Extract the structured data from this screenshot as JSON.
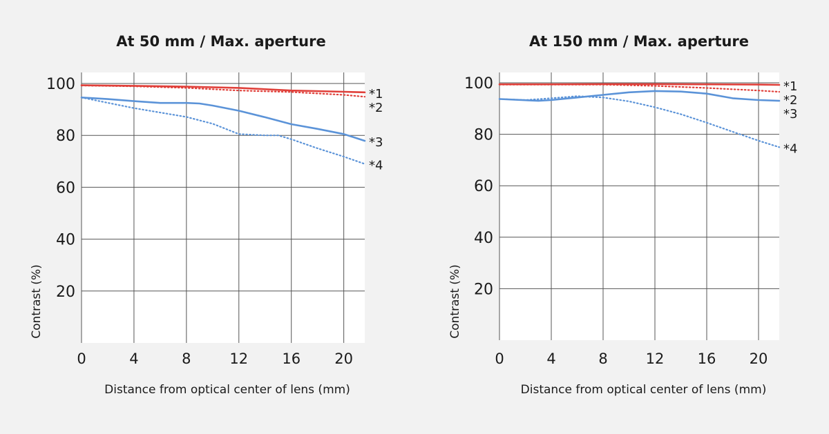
{
  "chart_data": [
    {
      "type": "line",
      "title": "At 50 mm / Max. aperture",
      "xlabel": "Distance from optical center of lens (mm)",
      "ylabel": "Contrast (%)",
      "xlim": [
        0,
        21.6
      ],
      "ylim": [
        0,
        100
      ],
      "xticks": [
        0,
        4,
        8,
        12,
        16,
        20
      ],
      "yticks": [
        20,
        40,
        60,
        80,
        100
      ],
      "grid": true,
      "series": [
        {
          "name": "*1",
          "color": "#e0403a",
          "style": "solid",
          "x": [
            0,
            4,
            8,
            12,
            16,
            20,
            21.6
          ],
          "y": [
            99.3,
            99.1,
            98.8,
            98.3,
            97.3,
            96.8,
            96.6
          ]
        },
        {
          "name": "*2",
          "color": "#e0403a",
          "style": "dotted",
          "x": [
            0,
            4,
            8,
            12,
            16,
            20,
            21.6
          ],
          "y": [
            99.2,
            98.9,
            98.3,
            97.3,
            96.7,
            95.6,
            94.9
          ]
        },
        {
          "name": "*3",
          "color": "#5b93d8",
          "style": "solid",
          "x": [
            0,
            2,
            4,
            6,
            8,
            9,
            10,
            12,
            14,
            16,
            18,
            20,
            21.6
          ],
          "y": [
            94.6,
            94.0,
            93.2,
            92.5,
            92.5,
            92.3,
            91.5,
            89.5,
            87.0,
            84.3,
            82.5,
            80.5,
            77.9
          ]
        },
        {
          "name": "*4",
          "color": "#5b93d8",
          "style": "dotted",
          "x": [
            0,
            4,
            8,
            10,
            12,
            14,
            15,
            16,
            18,
            20,
            21.6
          ],
          "y": [
            94.6,
            90.5,
            87.1,
            84.5,
            80.5,
            80.0,
            80.0,
            78.5,
            75.0,
            71.8,
            69.0
          ]
        }
      ]
    },
    {
      "type": "line",
      "title": "At 150 mm / Max. aperture",
      "xlabel": "Distance from optical center of lens (mm)",
      "ylabel": "Contrast (%)",
      "xlim": [
        0,
        21.6
      ],
      "ylim": [
        0,
        100
      ],
      "xticks": [
        0,
        4,
        8,
        12,
        16,
        20
      ],
      "yticks": [
        20,
        40,
        60,
        80,
        100
      ],
      "grid": true,
      "series": [
        {
          "name": "*1",
          "color": "#e0403a",
          "style": "solid",
          "x": [
            0,
            4,
            8,
            12,
            16,
            20,
            21.6
          ],
          "y": [
            99.4,
            99.4,
            99.5,
            99.5,
            99.4,
            99.3,
            99.2
          ]
        },
        {
          "name": "*2",
          "color": "#e0403a",
          "style": "dotted",
          "x": [
            0,
            4,
            8,
            12,
            16,
            20,
            21.6
          ],
          "y": [
            99.3,
            99.3,
            99.3,
            98.8,
            98.0,
            97.0,
            96.5
          ]
        },
        {
          "name": "*3",
          "color": "#5b93d8",
          "style": "solid",
          "x": [
            0,
            3,
            4,
            6,
            8,
            10,
            12,
            14,
            16,
            18,
            20,
            21.6
          ],
          "y": [
            93.7,
            93.0,
            93.3,
            94.3,
            95.3,
            96.3,
            96.8,
            96.6,
            95.8,
            94.0,
            93.3,
            93.0
          ]
        },
        {
          "name": "*4",
          "color": "#5b93d8",
          "style": "dotted",
          "x": [
            0,
            2,
            4,
            6,
            8,
            10,
            12,
            14,
            16,
            18,
            20,
            21.6
          ],
          "y": [
            93.7,
            93.3,
            94.0,
            94.8,
            94.3,
            92.8,
            90.5,
            87.8,
            84.5,
            81.0,
            77.5,
            75.0
          ]
        }
      ]
    }
  ]
}
